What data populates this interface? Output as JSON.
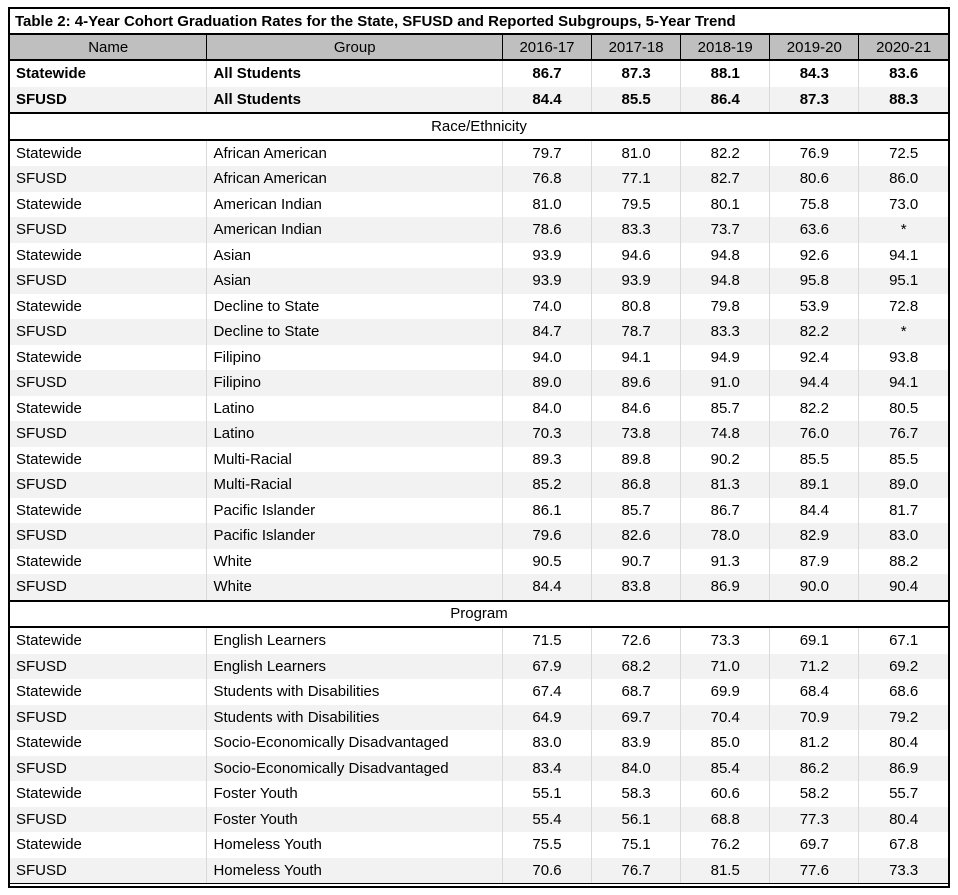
{
  "title": "Table 2: 4-Year Cohort Graduation Rates for the State, SFUSD and Reported Subgroups, 5-Year Trend",
  "columns": [
    "Name",
    "Group",
    "2016-17",
    "2017-18",
    "2018-19",
    "2019-20",
    "2020-21"
  ],
  "colors": {
    "header_bg": "#bfbfbf",
    "stripe_bg": "#f2f2f2",
    "border": "#000000",
    "grid": "#d9d9d9",
    "text": "#000000"
  },
  "sections": [
    {
      "header": null,
      "bold": true,
      "rows": [
        {
          "name": "Statewide",
          "group": "All Students",
          "values": [
            "86.7",
            "87.3",
            "88.1",
            "84.3",
            "83.6"
          ]
        },
        {
          "name": "SFUSD",
          "group": "All Students",
          "values": [
            "84.4",
            "85.5",
            "86.4",
            "87.3",
            "88.3"
          ]
        }
      ]
    },
    {
      "header": "Race/Ethnicity",
      "bold": false,
      "rows": [
        {
          "name": "Statewide",
          "group": "African American",
          "values": [
            "79.7",
            "81.0",
            "82.2",
            "76.9",
            "72.5"
          ]
        },
        {
          "name": "SFUSD",
          "group": "African American",
          "values": [
            "76.8",
            "77.1",
            "82.7",
            "80.6",
            "86.0"
          ]
        },
        {
          "name": "Statewide",
          "group": "American Indian",
          "values": [
            "81.0",
            "79.5",
            "80.1",
            "75.8",
            "73.0"
          ]
        },
        {
          "name": "SFUSD",
          "group": "American Indian",
          "values": [
            "78.6",
            "83.3",
            "73.7",
            "63.6",
            "*"
          ]
        },
        {
          "name": "Statewide",
          "group": "Asian",
          "values": [
            "93.9",
            "94.6",
            "94.8",
            "92.6",
            "94.1"
          ]
        },
        {
          "name": "SFUSD",
          "group": "Asian",
          "values": [
            "93.9",
            "93.9",
            "94.8",
            "95.8",
            "95.1"
          ]
        },
        {
          "name": "Statewide",
          "group": "Decline to State",
          "values": [
            "74.0",
            "80.8",
            "79.8",
            "53.9",
            "72.8"
          ]
        },
        {
          "name": "SFUSD",
          "group": "Decline to State",
          "values": [
            "84.7",
            "78.7",
            "83.3",
            "82.2",
            "*"
          ]
        },
        {
          "name": "Statewide",
          "group": "Filipino",
          "values": [
            "94.0",
            "94.1",
            "94.9",
            "92.4",
            "93.8"
          ]
        },
        {
          "name": "SFUSD",
          "group": "Filipino",
          "values": [
            "89.0",
            "89.6",
            "91.0",
            "94.4",
            "94.1"
          ]
        },
        {
          "name": "Statewide",
          "group": "Latino",
          "values": [
            "84.0",
            "84.6",
            "85.7",
            "82.2",
            "80.5"
          ]
        },
        {
          "name": "SFUSD",
          "group": "Latino",
          "values": [
            "70.3",
            "73.8",
            "74.8",
            "76.0",
            "76.7"
          ]
        },
        {
          "name": "Statewide",
          "group": "Multi-Racial",
          "values": [
            "89.3",
            "89.8",
            "90.2",
            "85.5",
            "85.5"
          ]
        },
        {
          "name": "SFUSD",
          "group": "Multi-Racial",
          "values": [
            "85.2",
            "86.8",
            "81.3",
            "89.1",
            "89.0"
          ]
        },
        {
          "name": "Statewide",
          "group": "Pacific Islander",
          "values": [
            "86.1",
            "85.7",
            "86.7",
            "84.4",
            "81.7"
          ]
        },
        {
          "name": "SFUSD",
          "group": "Pacific Islander",
          "values": [
            "79.6",
            "82.6",
            "78.0",
            "82.9",
            "83.0"
          ]
        },
        {
          "name": "Statewide",
          "group": "White",
          "values": [
            "90.5",
            "90.7",
            "91.3",
            "87.9",
            "88.2"
          ]
        },
        {
          "name": "SFUSD",
          "group": "White",
          "values": [
            "84.4",
            "83.8",
            "86.9",
            "90.0",
            "90.4"
          ]
        }
      ]
    },
    {
      "header": "Program",
      "bold": false,
      "rows": [
        {
          "name": "Statewide",
          "group": "English Learners",
          "values": [
            "71.5",
            "72.6",
            "73.3",
            "69.1",
            "67.1"
          ]
        },
        {
          "name": "SFUSD",
          "group": "English Learners",
          "values": [
            "67.9",
            "68.2",
            "71.0",
            "71.2",
            "69.2"
          ]
        },
        {
          "name": "Statewide",
          "group": "Students with Disabilities",
          "values": [
            "67.4",
            "68.7",
            "69.9",
            "68.4",
            "68.6"
          ]
        },
        {
          "name": "SFUSD",
          "group": "Students with Disabilities",
          "values": [
            "64.9",
            "69.7",
            "70.4",
            "70.9",
            "79.2"
          ]
        },
        {
          "name": "Statewide",
          "group": "Socio-Economically Disadvantaged",
          "values": [
            "83.0",
            "83.9",
            "85.0",
            "81.2",
            "80.4"
          ]
        },
        {
          "name": "SFUSD",
          "group": "Socio-Economically Disadvantaged",
          "values": [
            "83.4",
            "84.0",
            "85.4",
            "86.2",
            "86.9"
          ]
        },
        {
          "name": "Statewide",
          "group": "Foster Youth",
          "values": [
            "55.1",
            "58.3",
            "60.6",
            "58.2",
            "55.7"
          ]
        },
        {
          "name": "SFUSD",
          "group": "Foster Youth",
          "values": [
            "55.4",
            "56.1",
            "68.8",
            "77.3",
            "80.4"
          ]
        },
        {
          "name": "Statewide",
          "group": "Homeless Youth",
          "values": [
            "75.5",
            "75.1",
            "76.2",
            "69.7",
            "67.8"
          ]
        },
        {
          "name": "SFUSD",
          "group": "Homeless Youth",
          "values": [
            "70.6",
            "76.7",
            "81.5",
            "77.6",
            "73.3"
          ]
        }
      ]
    }
  ]
}
